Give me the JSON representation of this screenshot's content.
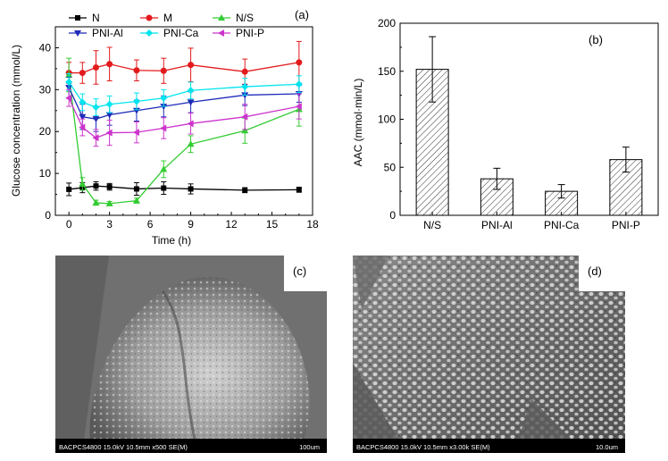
{
  "panels": {
    "a": "(a)",
    "b": "(b)",
    "c": "(c)",
    "d": "(d)"
  },
  "chart_data": [
    {
      "type": "line",
      "panel": "(a)",
      "xlabel": "Time (h)",
      "ylabel": "Glucose concentration (mmol/L)",
      "xlim": [
        -1,
        18
      ],
      "ylim": [
        0,
        45
      ],
      "xticks": [
        0,
        3,
        6,
        9,
        12,
        15,
        18
      ],
      "yticks": [
        0,
        10,
        20,
        30,
        40
      ],
      "legend": "top",
      "series": [
        {
          "name": "N",
          "color": "#000000",
          "marker": "square",
          "x": [
            0,
            1,
            2,
            3,
            5,
            7,
            9,
            13,
            17
          ],
          "y": [
            6.2,
            6.6,
            7.0,
            6.8,
            6.3,
            6.5,
            6.3,
            6.0,
            6.1
          ],
          "err": [
            1.5,
            1.2,
            1.0,
            0.8,
            1.5,
            1.5,
            1.2,
            0.6,
            0.6
          ]
        },
        {
          "name": "M",
          "color": "#e31a1c",
          "marker": "circle",
          "x": [
            0,
            1,
            2,
            3,
            5,
            7,
            9,
            13,
            17
          ],
          "y": [
            34.0,
            34.0,
            35.3,
            36.1,
            34.6,
            34.5,
            35.9,
            34.3,
            36.5
          ],
          "err": [
            2.5,
            2.5,
            4.0,
            4.0,
            2.5,
            3.0,
            4.0,
            3.0,
            5.0
          ]
        },
        {
          "name": "N/S",
          "color": "#33cc33",
          "marker": "triangle",
          "x": [
            0,
            1,
            2,
            3,
            5,
            7,
            9,
            13,
            17
          ],
          "y": [
            33.5,
            7.5,
            3.0,
            2.8,
            3.5,
            11.0,
            17.0,
            20.2,
            25.3
          ],
          "err": [
            4.0,
            1.5,
            0.6,
            0.5,
            0.6,
            2.0,
            2.0,
            3.0,
            4.0
          ]
        },
        {
          "name": "PNI-Al",
          "color": "#1f2bb8",
          "marker": "triangle-down",
          "x": [
            0,
            1,
            2,
            3,
            5,
            7,
            9,
            13,
            17
          ],
          "y": [
            30.5,
            23.5,
            23.0,
            24.0,
            25.0,
            26.0,
            27.0,
            28.7,
            29.0
          ],
          "err": [
            2.5,
            3.0,
            3.0,
            2.5,
            2.5,
            2.5,
            2.5,
            2.5,
            2.0
          ]
        },
        {
          "name": "PNI-Ca",
          "color": "#00e5ee",
          "marker": "diamond",
          "x": [
            0,
            1,
            2,
            3,
            5,
            7,
            9,
            13,
            17
          ],
          "y": [
            31.8,
            27.0,
            25.8,
            26.5,
            27.2,
            28.0,
            29.8,
            30.7,
            31.3
          ],
          "err": [
            2.0,
            2.0,
            2.0,
            2.0,
            2.0,
            2.0,
            2.0,
            2.0,
            2.0
          ]
        },
        {
          "name": "PNI-P",
          "color": "#cc33cc",
          "marker": "triangle-left",
          "x": [
            0,
            1,
            2,
            3,
            5,
            7,
            9,
            13,
            17
          ],
          "y": [
            28.0,
            21.0,
            18.5,
            19.7,
            19.8,
            20.8,
            21.9,
            23.5,
            26.0
          ],
          "err": [
            2.0,
            2.0,
            2.0,
            3.0,
            2.5,
            2.5,
            2.5,
            3.0,
            3.0
          ]
        }
      ]
    },
    {
      "type": "bar",
      "panel": "(b)",
      "ylabel": "AAC (mmol·min/L)",
      "categories": [
        "N/S",
        "PNI-Al",
        "PNI-Ca",
        "PNI-P"
      ],
      "values": [
        152,
        38,
        25,
        58
      ],
      "errors": [
        34,
        11,
        7,
        13
      ],
      "ylim": [
        0,
        200
      ],
      "yticks": [
        0,
        50,
        100,
        150,
        200
      ],
      "fill": "hatched"
    }
  ],
  "micrographs": [
    {
      "panel": "(c)",
      "info": "BACPCS4800 15.0kV 10.5mm x500 SE(M)",
      "scale": "100um"
    },
    {
      "panel": "(d)",
      "info": "BACPCS4800 15.0kV 10.5mm x3.00k SE(M)",
      "scale": "10.0um"
    }
  ]
}
